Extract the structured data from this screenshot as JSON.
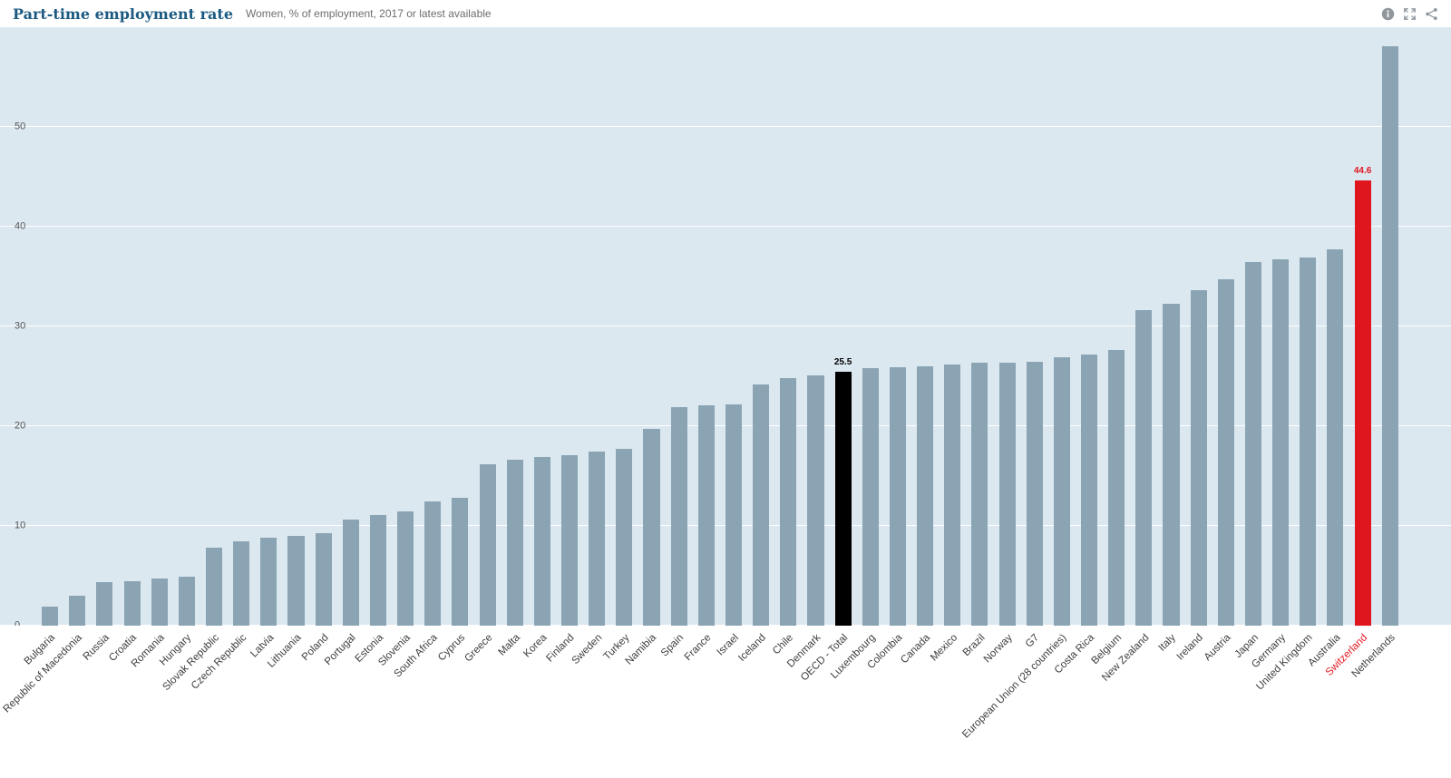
{
  "header": {
    "icons": [
      "info-icon",
      "fullscreen-icon",
      "share-icon"
    ]
  },
  "chart_data": {
    "type": "bar",
    "title": "Part-time employment rate",
    "subtitle": "Women, % of employment, 2017 or latest available",
    "xlabel": "",
    "ylabel": "% of employment",
    "ylim": [
      0,
      60
    ],
    "yticks": [
      0,
      10,
      20,
      30,
      40,
      50
    ],
    "grid": "horizontal-white-lines",
    "legend": "none",
    "palette": {
      "default": "#8aa4b4",
      "highlight_dark": "#000000",
      "highlight_red": "#e0161f"
    },
    "background": "#dce8f0",
    "bars": [
      {
        "label": "Bulgaria",
        "value": 1.9
      },
      {
        "label": "Republic of Macedonia",
        "value": 3.0
      },
      {
        "label": "Russia",
        "value": 4.4
      },
      {
        "label": "Croatia",
        "value": 4.5
      },
      {
        "label": "Romania",
        "value": 4.7
      },
      {
        "label": "Hungary",
        "value": 4.9
      },
      {
        "label": "Slovak Republic",
        "value": 7.8
      },
      {
        "label": "Czech Republic",
        "value": 8.5
      },
      {
        "label": "Latvia",
        "value": 8.8
      },
      {
        "label": "Lithuania",
        "value": 9.0
      },
      {
        "label": "Poland",
        "value": 9.3
      },
      {
        "label": "Portugal",
        "value": 10.6
      },
      {
        "label": "Estonia",
        "value": 11.1
      },
      {
        "label": "Slovenia",
        "value": 11.5
      },
      {
        "label": "South Africa",
        "value": 12.5
      },
      {
        "label": "Cyprus",
        "value": 12.8
      },
      {
        "label": "Greece",
        "value": 16.2
      },
      {
        "label": "Malta",
        "value": 16.6
      },
      {
        "label": "Korea",
        "value": 16.9
      },
      {
        "label": "Finland",
        "value": 17.1
      },
      {
        "label": "Sweden",
        "value": 17.5
      },
      {
        "label": "Turkey",
        "value": 17.7
      },
      {
        "label": "Namibia",
        "value": 19.7
      },
      {
        "label": "Spain",
        "value": 21.9
      },
      {
        "label": "France",
        "value": 22.1
      },
      {
        "label": "Israel",
        "value": 22.2
      },
      {
        "label": "Iceland",
        "value": 24.2
      },
      {
        "label": "Chile",
        "value": 24.8
      },
      {
        "label": "Denmark",
        "value": 25.1
      },
      {
        "label": "OECD - Total",
        "value": 25.5,
        "highlight": "highlight_dark",
        "show_value": true
      },
      {
        "label": "Luxembourg",
        "value": 25.8
      },
      {
        "label": "Colombia",
        "value": 25.9
      },
      {
        "label": "Canada",
        "value": 26.0
      },
      {
        "label": "Mexico",
        "value": 26.2
      },
      {
        "label": "Brazil",
        "value": 26.4
      },
      {
        "label": "Norway",
        "value": 26.4
      },
      {
        "label": "G7",
        "value": 26.5
      },
      {
        "label": "European Union (28 countries)",
        "value": 26.9
      },
      {
        "label": "Costa Rica",
        "value": 27.2
      },
      {
        "label": "Belgium",
        "value": 27.6
      },
      {
        "label": "New Zealand",
        "value": 31.6
      },
      {
        "label": "Italy",
        "value": 32.3
      },
      {
        "label": "Ireland",
        "value": 33.6
      },
      {
        "label": "Austria",
        "value": 34.7
      },
      {
        "label": "Japan",
        "value": 36.5
      },
      {
        "label": "Germany",
        "value": 36.7
      },
      {
        "label": "United Kingdom",
        "value": 36.9
      },
      {
        "label": "Australia",
        "value": 37.7
      },
      {
        "label": "Switzerland",
        "value": 44.6,
        "highlight": "highlight_red",
        "show_value": true,
        "label_color": "#e0161f"
      },
      {
        "label": "Netherlands",
        "value": 58.1
      }
    ]
  }
}
